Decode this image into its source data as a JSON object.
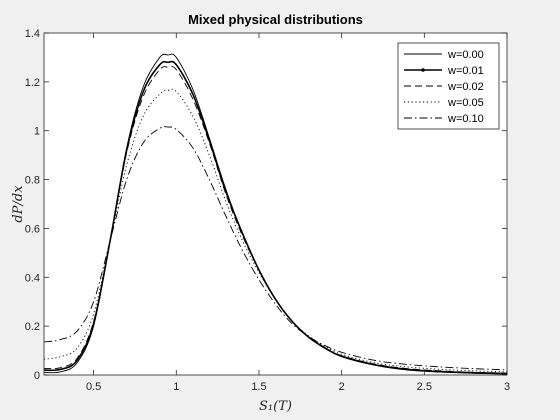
{
  "chart_data": {
    "type": "line",
    "title": "Mixed physical distributions",
    "xlabel": "S₁(T)",
    "ylabel": "dP/dx",
    "xlim": [
      0.2,
      3.0
    ],
    "ylim": [
      0,
      1.4
    ],
    "xticks": [
      0.5,
      1,
      1.5,
      2,
      2.5,
      3
    ],
    "xtick_labels": [
      "0.5",
      "1",
      "1.5",
      "2",
      "2.5",
      "3"
    ],
    "yticks": [
      0,
      0.2,
      0.4,
      0.6,
      0.8,
      1,
      1.2,
      1.4
    ],
    "ytick_labels": [
      "0",
      "0.2",
      "0.4",
      "0.6",
      "0.8",
      "1",
      "1.2",
      "1.4"
    ],
    "grid": false,
    "legend_position": "top-right",
    "series": [
      {
        "name": "w=0.00",
        "style": "solid",
        "color": "#000000",
        "x": [
          0.2,
          0.3,
          0.4,
          0.5,
          0.6,
          0.7,
          0.8,
          0.9,
          0.95,
          1.0,
          1.1,
          1.2,
          1.3,
          1.4,
          1.5,
          1.6,
          1.7,
          1.8,
          1.9,
          2.0,
          2.2,
          2.4,
          2.6,
          2.8,
          3.0
        ],
        "y": [
          0.01,
          0.013,
          0.05,
          0.2,
          0.55,
          0.93,
          1.18,
          1.3,
          1.31,
          1.3,
          1.17,
          0.97,
          0.76,
          0.58,
          0.43,
          0.31,
          0.22,
          0.155,
          0.11,
          0.075,
          0.04,
          0.02,
          0.012,
          0.007,
          0.004
        ]
      },
      {
        "name": "w=0.01",
        "style": "solid-dot",
        "color": "#000000",
        "x": [
          0.2,
          0.3,
          0.4,
          0.5,
          0.6,
          0.7,
          0.8,
          0.9,
          0.95,
          1.0,
          1.1,
          1.2,
          1.3,
          1.4,
          1.5,
          1.6,
          1.7,
          1.8,
          1.9,
          2.0,
          2.2,
          2.4,
          2.6,
          2.8,
          3.0
        ],
        "y": [
          0.02,
          0.023,
          0.06,
          0.21,
          0.55,
          0.92,
          1.16,
          1.27,
          1.28,
          1.27,
          1.15,
          0.96,
          0.75,
          0.58,
          0.43,
          0.31,
          0.22,
          0.155,
          0.11,
          0.077,
          0.042,
          0.023,
          0.014,
          0.009,
          0.006
        ]
      },
      {
        "name": "w=0.02",
        "style": "dashed",
        "color": "#000000",
        "x": [
          0.2,
          0.3,
          0.4,
          0.5,
          0.6,
          0.7,
          0.8,
          0.9,
          0.95,
          1.0,
          1.1,
          1.2,
          1.3,
          1.4,
          1.5,
          1.6,
          1.7,
          1.8,
          1.9,
          2.0,
          2.2,
          2.4,
          2.6,
          2.8,
          3.0
        ],
        "y": [
          0.027,
          0.03,
          0.068,
          0.22,
          0.55,
          0.91,
          1.14,
          1.25,
          1.26,
          1.25,
          1.13,
          0.95,
          0.74,
          0.57,
          0.43,
          0.31,
          0.22,
          0.157,
          0.112,
          0.079,
          0.045,
          0.026,
          0.017,
          0.011,
          0.008
        ]
      },
      {
        "name": "w=0.05",
        "style": "dotted",
        "color": "#000000",
        "x": [
          0.2,
          0.3,
          0.4,
          0.5,
          0.6,
          0.7,
          0.8,
          0.9,
          0.95,
          1.0,
          1.1,
          1.2,
          1.3,
          1.4,
          1.5,
          1.6,
          1.7,
          1.8,
          1.9,
          2.0,
          2.2,
          2.4,
          2.6,
          2.8,
          3.0
        ],
        "y": [
          0.065,
          0.075,
          0.11,
          0.25,
          0.55,
          0.86,
          1.06,
          1.15,
          1.165,
          1.16,
          1.06,
          0.9,
          0.71,
          0.55,
          0.42,
          0.31,
          0.22,
          0.16,
          0.117,
          0.085,
          0.05,
          0.033,
          0.023,
          0.017,
          0.013
        ]
      },
      {
        "name": "w=0.10",
        "style": "dashdot",
        "color": "#000000",
        "x": [
          0.2,
          0.3,
          0.4,
          0.5,
          0.6,
          0.7,
          0.8,
          0.9,
          0.95,
          1.0,
          1.1,
          1.2,
          1.3,
          1.4,
          1.5,
          1.6,
          1.7,
          1.8,
          1.9,
          2.0,
          2.2,
          2.4,
          2.6,
          2.8,
          3.0
        ],
        "y": [
          0.135,
          0.145,
          0.18,
          0.3,
          0.55,
          0.8,
          0.95,
          1.01,
          1.015,
          1.005,
          0.93,
          0.8,
          0.65,
          0.51,
          0.39,
          0.29,
          0.21,
          0.158,
          0.12,
          0.093,
          0.06,
          0.043,
          0.033,
          0.026,
          0.021
        ]
      }
    ]
  }
}
